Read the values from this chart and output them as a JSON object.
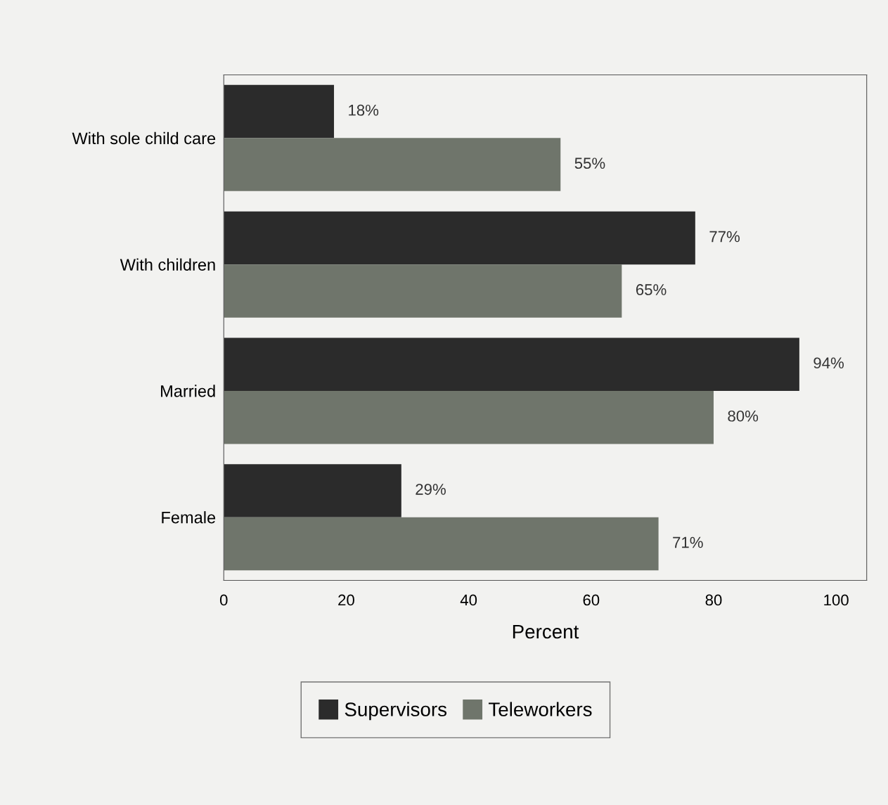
{
  "chart_data": {
    "type": "bar",
    "orientation": "horizontal",
    "xlabel": "Percent",
    "categories": [
      "With sole child care",
      "With children",
      "Married",
      "Female"
    ],
    "series": [
      {
        "name": "Supervisors",
        "color": "#2b2b2b",
        "values": [
          18,
          77,
          94,
          29
        ],
        "value_labels": [
          "18%",
          "77%",
          "94%",
          "29%"
        ]
      },
      {
        "name": "Teleworkers",
        "color": "#6f756b",
        "values": [
          55,
          65,
          80,
          71
        ],
        "value_labels": [
          "55%",
          "65%",
          "80%",
          "71%"
        ]
      }
    ],
    "xlim": [
      0,
      105
    ],
    "xticks": [
      0,
      20,
      40,
      60,
      80,
      100
    ],
    "grid": false,
    "legend": "bottom"
  }
}
